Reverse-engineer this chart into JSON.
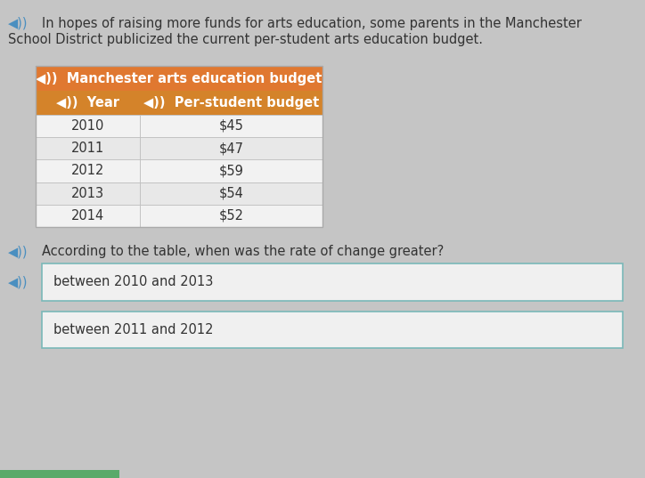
{
  "background_color": "#c5c5c5",
  "text_color": "#333333",
  "speaker_color": "#4a8fc0",
  "table_title_bg": "#e07830",
  "table_header_bg": "#d4832a",
  "table_row_colors": [
    "#f2f2f2",
    "#e8e8e8"
  ],
  "table_data": [
    [
      "2010",
      "$45"
    ],
    [
      "2011",
      "$47"
    ],
    [
      "2012",
      "$59"
    ],
    [
      "2013",
      "$54"
    ],
    [
      "2014",
      "$52"
    ]
  ],
  "answer_box_bg": "#f0f0f0",
  "answer_box_border": "#7ab8b8",
  "answer1_text": "between 2010 and 2013",
  "answer2_text": "between 2011 and 2012",
  "bottom_bar_color": "#5aaa6a",
  "font_size": 10.5
}
